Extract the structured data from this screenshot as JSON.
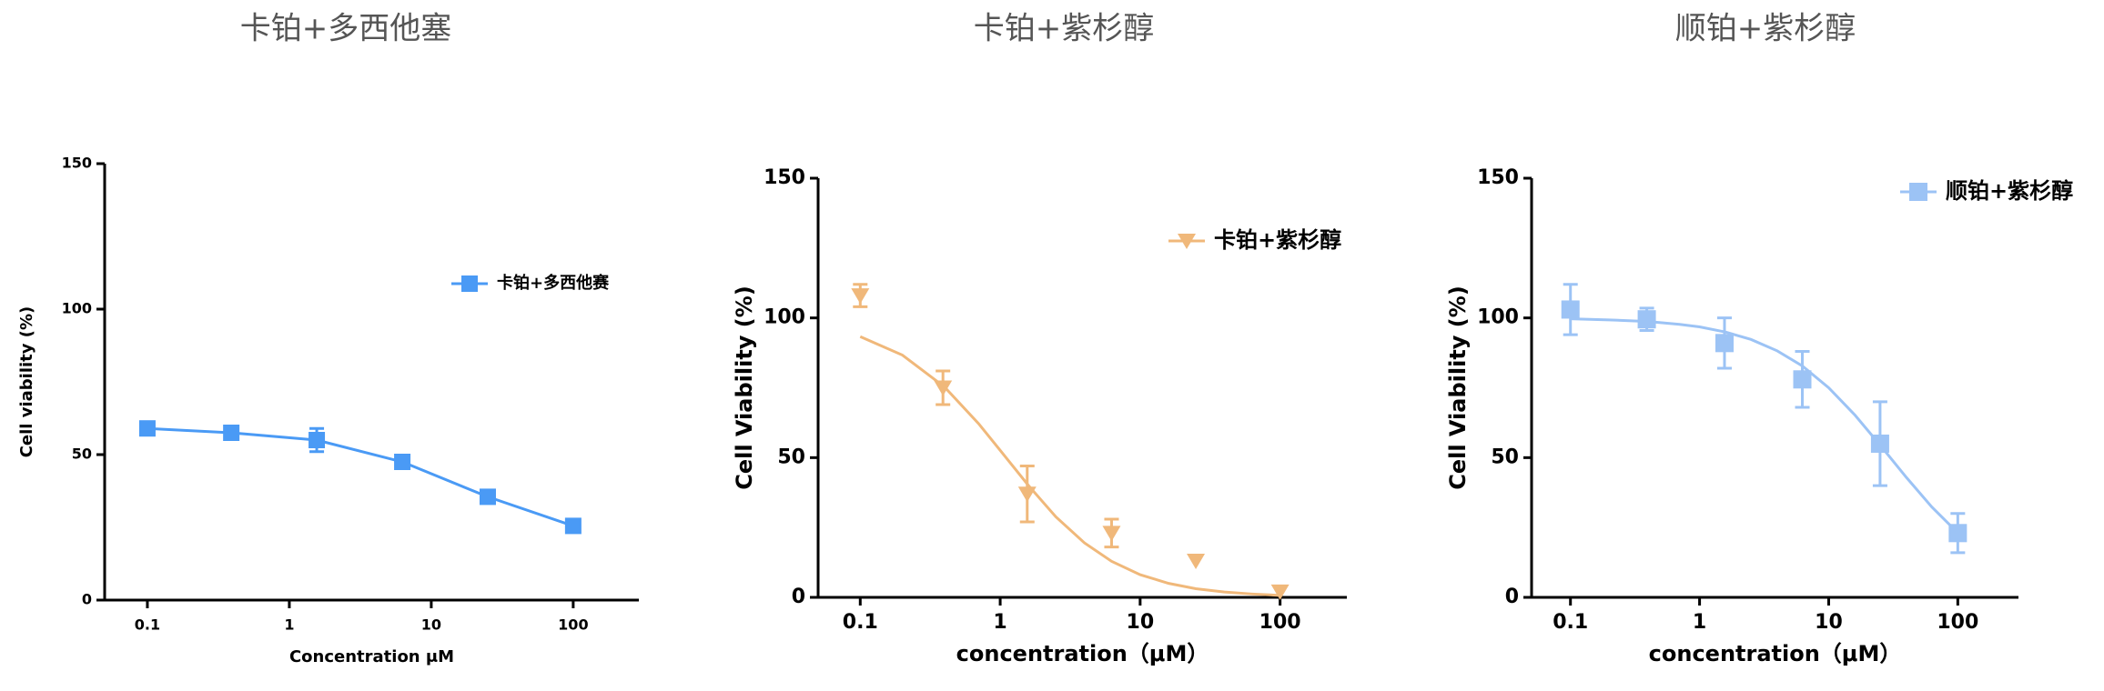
{
  "chart_data": [
    {
      "type": "scatter",
      "title": "卡铂+多西他塞",
      "x_label": "Concentration μM",
      "y_label": "Cell viability (%)",
      "log_x": true,
      "marker": "square",
      "legend": "right",
      "xlim": [
        0.05,
        290
      ],
      "ylim": [
        0,
        150
      ],
      "xticks": [
        0.1,
        1,
        10,
        100
      ],
      "yticks": [
        0,
        50,
        100,
        150
      ],
      "series": [
        {
          "name": "卡铂+多西他赛",
          "color": "#4a9af5",
          "x": [
            0.1,
            0.39,
            1.56,
            6.25,
            25,
            100
          ],
          "values": [
            59,
            57.5,
            55,
            47.5,
            35.5,
            25.5
          ],
          "errors": [
            1,
            1,
            4,
            1.5,
            1,
            1
          ]
        }
      ],
      "fit": {
        "x": [
          0.1,
          0.39,
          1.56,
          6.25,
          25,
          100
        ],
        "values": [
          59,
          57.5,
          55,
          47.5,
          35.5,
          25.5
        ]
      }
    },
    {
      "type": "scatter",
      "title": "卡铂+紫杉醇",
      "x_label": "concentration（μM）",
      "y_label": "Cell Viability (%)",
      "log_x": true,
      "marker": "triangle-down",
      "legend": "upper right",
      "xlim": [
        0.05,
        300
      ],
      "ylim": [
        0,
        150
      ],
      "xticks": [
        0.1,
        1,
        10,
        100
      ],
      "yticks": [
        0,
        50,
        100,
        150
      ],
      "series": [
        {
          "name": "卡铂+紫杉醇",
          "color": "#f0b87a",
          "x": [
            0.1,
            0.39,
            1.56,
            6.25,
            25,
            100
          ],
          "values": [
            108,
            75,
            37,
            23,
            13,
            2
          ],
          "errors": [
            4,
            6,
            10,
            5,
            0,
            0
          ]
        }
      ],
      "fit": {
        "x": [
          0.1,
          0.2,
          0.4,
          0.7,
          1,
          1.6,
          2.5,
          4,
          6.25,
          10,
          16,
          25,
          40,
          63,
          100
        ],
        "values": [
          93.3,
          86.7,
          75.3,
          62.2,
          52.6,
          39.9,
          28.8,
          19.5,
          12.9,
          8.1,
          5.0,
          3.1,
          1.9,
          1.2,
          0.7
        ]
      }
    },
    {
      "type": "scatter",
      "title": "顺铂+紫杉醇",
      "x_label": "concentration（μM）",
      "y_label": "Cell Viability (%)",
      "log_x": true,
      "marker": "square",
      "legend": "upper right",
      "xlim": [
        0.05,
        295
      ],
      "ylim": [
        0,
        150
      ],
      "xticks": [
        0.1,
        1,
        10,
        100
      ],
      "yticks": [
        0,
        50,
        100,
        150
      ],
      "series": [
        {
          "name": "顺铂+紫杉醇",
          "color": "#9cc3f5",
          "x": [
            0.1,
            0.39,
            1.56,
            6.25,
            25,
            100
          ],
          "values": [
            103,
            99.5,
            91,
            78,
            55,
            23
          ],
          "errors": [
            9,
            4,
            9,
            10,
            15,
            7
          ]
        }
      ],
      "fit": {
        "x": [
          0.1,
          0.2,
          0.4,
          0.7,
          1,
          1.6,
          2.5,
          4,
          6.25,
          10,
          16,
          25,
          40,
          63,
          100
        ],
        "values": [
          99.7,
          99.3,
          98.7,
          97.7,
          96.8,
          94.9,
          92.3,
          88.2,
          82.8,
          75.0,
          65.2,
          54.5,
          42.9,
          32.3,
          23.1
        ]
      }
    }
  ]
}
